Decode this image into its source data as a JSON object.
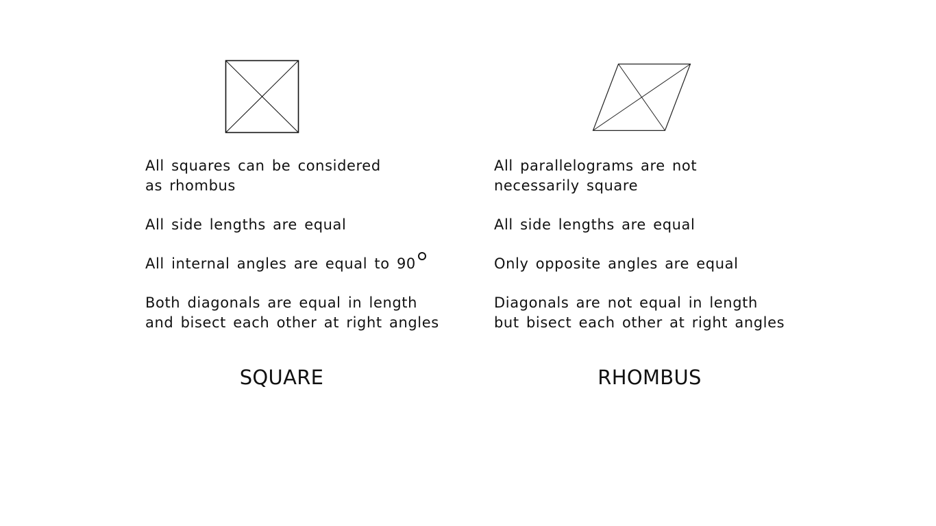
{
  "square": {
    "caption": "SQUARE",
    "properties": [
      "All squares can be considered\nas rhombus",
      "All side lengths are equal",
      "All internal angles are equal to 90",
      "Both diagonals are equal in length\nand bisect each other at right angles"
    ]
  },
  "rhombus": {
    "caption": "RHOMBUS",
    "properties": [
      "All parallelograms are not\nnecessarily square",
      "All side lengths are equal",
      "Only opposite angles are equal",
      "Diagonals are not equal in length\nbut bisect each other at right angles"
    ]
  }
}
